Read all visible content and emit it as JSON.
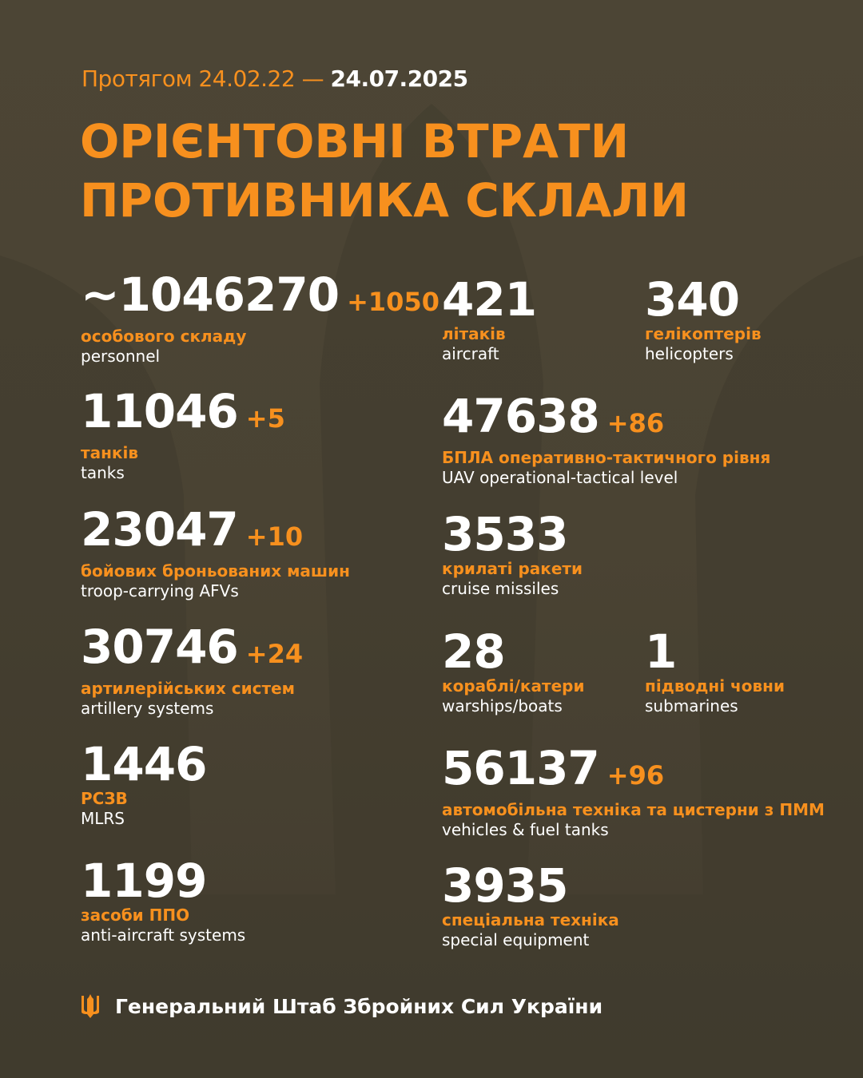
{
  "header": {
    "period_prefix": "Протягом 24.02.22 —",
    "period_end": "24.07.2025",
    "title_line1": "ОРІЄНТОВНІ ВТРАТИ",
    "title_line2": "ПРОТИВНИКА СКЛАЛИ"
  },
  "stats": [
    {
      "value": "~1046270",
      "delta": "+1050",
      "ua": "особового складу",
      "en": "personnel"
    },
    {
      "value": "11046",
      "delta": "+5",
      "ua": "танків",
      "en": "tanks"
    },
    {
      "value": "23047",
      "delta": "+10",
      "ua": "бойових броньованих машин",
      "en": "troop-carrying AFVs"
    },
    {
      "value": "30746",
      "delta": "+24",
      "ua": "артилерійських систем",
      "en": "artillery systems"
    },
    {
      "value": "1446",
      "delta": "",
      "ua": "РСЗВ",
      "en": "MLRS"
    },
    {
      "value": "1199",
      "delta": "",
      "ua": "засоби ППО",
      "en": "anti-aircraft systems"
    },
    {
      "value": "421",
      "delta": "",
      "ua": "літаків",
      "en": "aircraft"
    },
    {
      "value": "340",
      "delta": "",
      "ua": "гелікоптерів",
      "en": "helicopters"
    },
    {
      "value": "47638",
      "delta": "+86",
      "ua": "БПЛА оперативно-тактичного рівня",
      "en": "UAV operational-tactical level"
    },
    {
      "value": "3533",
      "delta": "",
      "ua": "крилаті ракети",
      "en": "cruise missiles"
    },
    {
      "value": "28",
      "delta": "",
      "ua": "кораблі/катери",
      "en": "warships/boats"
    },
    {
      "value": "1",
      "delta": "",
      "ua": "підводні човни",
      "en": "submarines"
    },
    {
      "value": "56137",
      "delta": "+96",
      "ua": "автомобільна техніка та цистерни з ПММ",
      "en": "vehicles & fuel tanks"
    },
    {
      "value": "3935",
      "delta": "",
      "ua": "спеціальна техніка",
      "en": "special equipment"
    }
  ],
  "footer": {
    "org": "Генеральний Штаб Збройних Сил України",
    "icon": "trident-icon"
  },
  "colors": {
    "accent": "#f7901e",
    "background": "#4a4333"
  }
}
